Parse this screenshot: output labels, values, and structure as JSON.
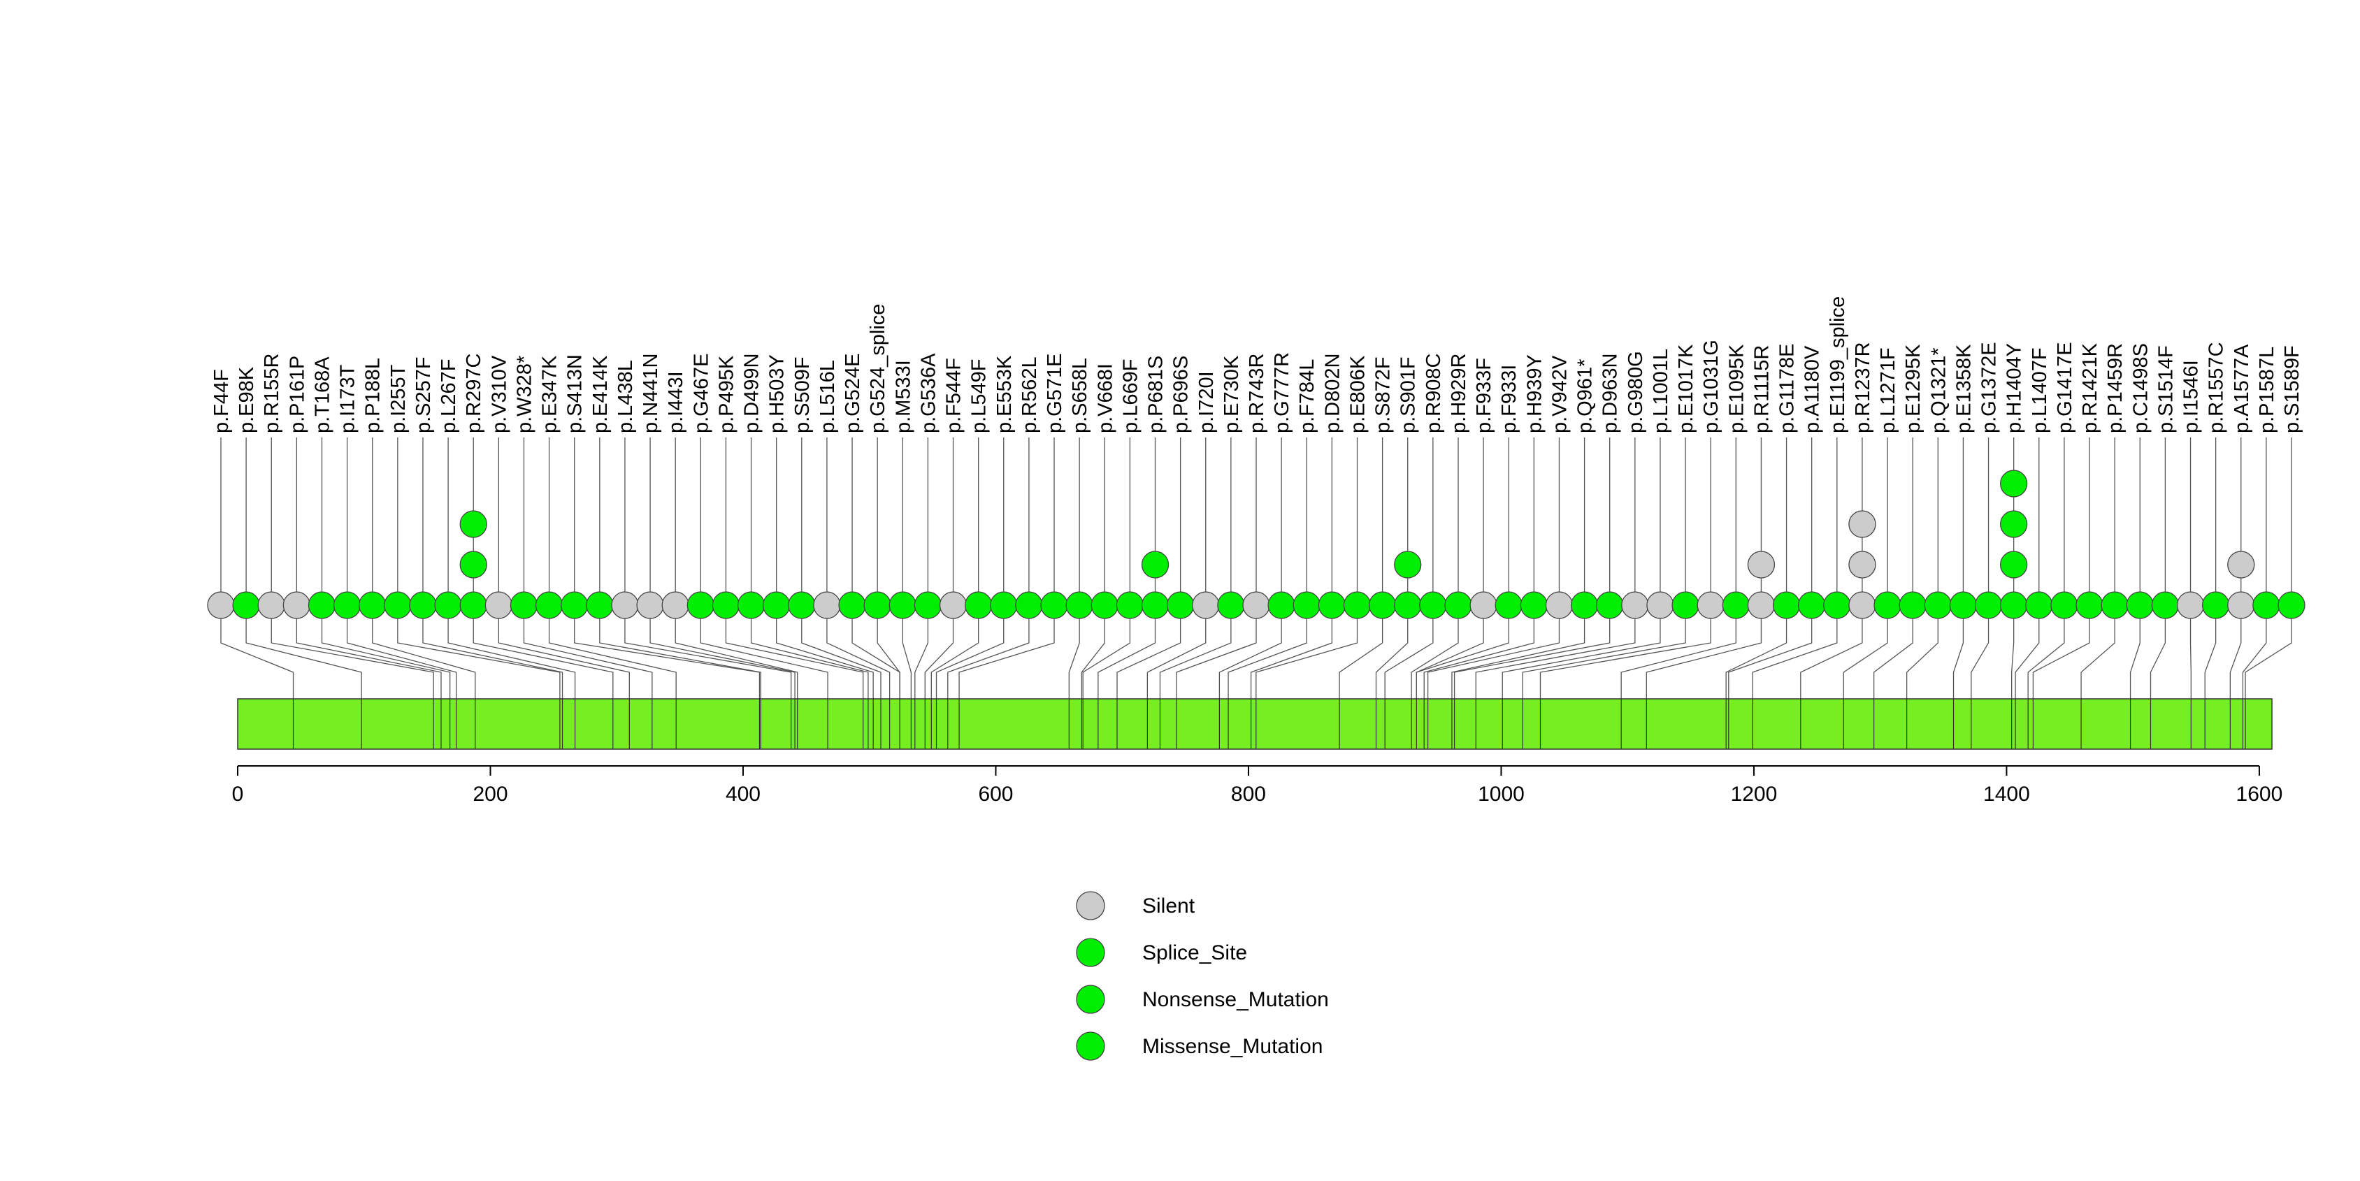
{
  "colors": {
    "silent": "#cccccc",
    "mutation": "#00ee00",
    "protein_bar": "#76ee22",
    "line": "#555555"
  },
  "chart_data": {
    "type": "lollipop",
    "title": "",
    "xlabel": "",
    "ylabel": "",
    "xlim": [
      0,
      1610
    ],
    "x_ticks": [
      0,
      200,
      400,
      600,
      800,
      1000,
      1200,
      1400,
      1600
    ],
    "protein_length": 1610,
    "legend_placement": "bottom-center",
    "legend": [
      {
        "label": "Silent",
        "color_key": "silent"
      },
      {
        "label": "Splice_Site",
        "color_key": "mutation"
      },
      {
        "label": "Nonsense_Mutation",
        "color_key": "mutation"
      },
      {
        "label": "Missense_Mutation",
        "color_key": "mutation"
      }
    ],
    "domain_boundaries": [
      44,
      98,
      155,
      161,
      168,
      173,
      188,
      255,
      257,
      267,
      297,
      310,
      328,
      347,
      413,
      414,
      438,
      441,
      443,
      467,
      495,
      499,
      503,
      509,
      516,
      524,
      533,
      536,
      544,
      549,
      553,
      562,
      571,
      658,
      668,
      669,
      681,
      696,
      720,
      730,
      743,
      777,
      784,
      802,
      806,
      872,
      901,
      908,
      929,
      933,
      939,
      942,
      961,
      963,
      980,
      1001,
      1017,
      1031,
      1095,
      1115,
      1178,
      1180,
      1199,
      1237,
      1271,
      1295,
      1321,
      1358,
      1372,
      1404,
      1407,
      1417,
      1421,
      1459,
      1498,
      1514,
      1546,
      1557,
      1577,
      1587,
      1589
    ],
    "mutations": [
      {
        "label": "p.F44F",
        "position": 44,
        "counts": [
          "silent"
        ]
      },
      {
        "label": "p.E98K",
        "position": 98,
        "counts": [
          "mutation"
        ]
      },
      {
        "label": "p.R155R",
        "position": 155,
        "counts": [
          "silent"
        ]
      },
      {
        "label": "p.P161P",
        "position": 161,
        "counts": [
          "silent"
        ]
      },
      {
        "label": "p.T168A",
        "position": 168,
        "counts": [
          "mutation"
        ]
      },
      {
        "label": "p.I173T",
        "position": 173,
        "counts": [
          "mutation"
        ]
      },
      {
        "label": "p.P188L",
        "position": 188,
        "counts": [
          "mutation"
        ]
      },
      {
        "label": "p.I255T",
        "position": 255,
        "counts": [
          "mutation"
        ]
      },
      {
        "label": "p.S257F",
        "position": 257,
        "counts": [
          "mutation"
        ]
      },
      {
        "label": "p.L267F",
        "position": 267,
        "counts": [
          "mutation"
        ]
      },
      {
        "label": "p.R297C",
        "position": 297,
        "counts": [
          "mutation",
          "mutation",
          "mutation"
        ]
      },
      {
        "label": "p.V310V",
        "position": 310,
        "counts": [
          "silent"
        ]
      },
      {
        "label": "p.W328*",
        "position": 328,
        "counts": [
          "mutation"
        ]
      },
      {
        "label": "p.E347K",
        "position": 347,
        "counts": [
          "mutation"
        ]
      },
      {
        "label": "p.S413N",
        "position": 413,
        "counts": [
          "mutation"
        ]
      },
      {
        "label": "p.E414K",
        "position": 414,
        "counts": [
          "mutation"
        ]
      },
      {
        "label": "p.L438L",
        "position": 438,
        "counts": [
          "silent"
        ]
      },
      {
        "label": "p.N441N",
        "position": 441,
        "counts": [
          "silent"
        ]
      },
      {
        "label": "p.I443I",
        "position": 443,
        "counts": [
          "silent"
        ]
      },
      {
        "label": "p.G467E",
        "position": 467,
        "counts": [
          "mutation"
        ]
      },
      {
        "label": "p.P495K",
        "position": 495,
        "counts": [
          "mutation"
        ]
      },
      {
        "label": "p.D499N",
        "position": 499,
        "counts": [
          "mutation"
        ]
      },
      {
        "label": "p.H503Y",
        "position": 503,
        "counts": [
          "mutation"
        ]
      },
      {
        "label": "p.S509F",
        "position": 509,
        "counts": [
          "mutation"
        ]
      },
      {
        "label": "p.L516L",
        "position": 516,
        "counts": [
          "silent"
        ]
      },
      {
        "label": "p.G524E",
        "position": 524,
        "counts": [
          "mutation"
        ]
      },
      {
        "label": "p.G524_splice",
        "position": 524,
        "counts": [
          "mutation"
        ]
      },
      {
        "label": "p.M533I",
        "position": 533,
        "counts": [
          "mutation"
        ]
      },
      {
        "label": "p.G536A",
        "position": 536,
        "counts": [
          "mutation"
        ]
      },
      {
        "label": "p.F544F",
        "position": 544,
        "counts": [
          "silent"
        ]
      },
      {
        "label": "p.L549F",
        "position": 549,
        "counts": [
          "mutation"
        ]
      },
      {
        "label": "p.E553K",
        "position": 553,
        "counts": [
          "mutation"
        ]
      },
      {
        "label": "p.R562L",
        "position": 562,
        "counts": [
          "mutation"
        ]
      },
      {
        "label": "p.G571E",
        "position": 571,
        "counts": [
          "mutation"
        ]
      },
      {
        "label": "p.S658L",
        "position": 658,
        "counts": [
          "mutation"
        ]
      },
      {
        "label": "p.V668I",
        "position": 668,
        "counts": [
          "mutation"
        ]
      },
      {
        "label": "p.L669F",
        "position": 669,
        "counts": [
          "mutation"
        ]
      },
      {
        "label": "p.P681S",
        "position": 681,
        "counts": [
          "mutation",
          "mutation"
        ]
      },
      {
        "label": "p.P696S",
        "position": 696,
        "counts": [
          "mutation"
        ]
      },
      {
        "label": "p.I720I",
        "position": 720,
        "counts": [
          "silent"
        ]
      },
      {
        "label": "p.E730K",
        "position": 730,
        "counts": [
          "mutation"
        ]
      },
      {
        "label": "p.R743R",
        "position": 743,
        "counts": [
          "silent"
        ]
      },
      {
        "label": "p.G777R",
        "position": 777,
        "counts": [
          "mutation"
        ]
      },
      {
        "label": "p.F784L",
        "position": 784,
        "counts": [
          "mutation"
        ]
      },
      {
        "label": "p.D802N",
        "position": 802,
        "counts": [
          "mutation"
        ]
      },
      {
        "label": "p.E806K",
        "position": 806,
        "counts": [
          "mutation"
        ]
      },
      {
        "label": "p.S872F",
        "position": 872,
        "counts": [
          "mutation"
        ]
      },
      {
        "label": "p.S901F",
        "position": 901,
        "counts": [
          "mutation",
          "mutation"
        ]
      },
      {
        "label": "p.R908C",
        "position": 908,
        "counts": [
          "mutation"
        ]
      },
      {
        "label": "p.H929R",
        "position": 929,
        "counts": [
          "mutation"
        ]
      },
      {
        "label": "p.F933F",
        "position": 933,
        "counts": [
          "silent"
        ]
      },
      {
        "label": "p.F933I",
        "position": 933,
        "counts": [
          "mutation"
        ]
      },
      {
        "label": "p.H939Y",
        "position": 939,
        "counts": [
          "mutation"
        ]
      },
      {
        "label": "p.V942V",
        "position": 942,
        "counts": [
          "silent"
        ]
      },
      {
        "label": "p.Q961*",
        "position": 961,
        "counts": [
          "mutation"
        ]
      },
      {
        "label": "p.D963N",
        "position": 963,
        "counts": [
          "mutation"
        ]
      },
      {
        "label": "p.G980G",
        "position": 980,
        "counts": [
          "silent"
        ]
      },
      {
        "label": "p.L1001L",
        "position": 1001,
        "counts": [
          "silent"
        ]
      },
      {
        "label": "p.E1017K",
        "position": 1017,
        "counts": [
          "mutation"
        ]
      },
      {
        "label": "p.G1031G",
        "position": 1031,
        "counts": [
          "silent"
        ]
      },
      {
        "label": "p.E1095K",
        "position": 1095,
        "counts": [
          "mutation"
        ]
      },
      {
        "label": "p.R1115R",
        "position": 1115,
        "counts": [
          "silent",
          "silent"
        ]
      },
      {
        "label": "p.G1178E",
        "position": 1178,
        "counts": [
          "mutation"
        ]
      },
      {
        "label": "p.A1180V",
        "position": 1180,
        "counts": [
          "mutation"
        ]
      },
      {
        "label": "p.E1199_splice",
        "position": 1199,
        "counts": [
          "mutation"
        ]
      },
      {
        "label": "p.R1237R",
        "position": 1237,
        "counts": [
          "silent",
          "silent",
          "silent"
        ]
      },
      {
        "label": "p.L1271F",
        "position": 1271,
        "counts": [
          "mutation"
        ]
      },
      {
        "label": "p.E1295K",
        "position": 1295,
        "counts": [
          "mutation"
        ]
      },
      {
        "label": "p.Q1321*",
        "position": 1321,
        "counts": [
          "mutation"
        ]
      },
      {
        "label": "p.E1358K",
        "position": 1358,
        "counts": [
          "mutation"
        ]
      },
      {
        "label": "p.G1372E",
        "position": 1372,
        "counts": [
          "mutation"
        ]
      },
      {
        "label": "p.H1404Y",
        "position": 1404,
        "counts": [
          "mutation",
          "mutation",
          "mutation",
          "mutation"
        ]
      },
      {
        "label": "p.L1407F",
        "position": 1407,
        "counts": [
          "mutation"
        ]
      },
      {
        "label": "p.G1417E",
        "position": 1417,
        "counts": [
          "mutation"
        ]
      },
      {
        "label": "p.R1421K",
        "position": 1421,
        "counts": [
          "mutation"
        ]
      },
      {
        "label": "p.P1459R",
        "position": 1459,
        "counts": [
          "mutation"
        ]
      },
      {
        "label": "p.C1498S",
        "position": 1498,
        "counts": [
          "mutation"
        ]
      },
      {
        "label": "p.S1514F",
        "position": 1514,
        "counts": [
          "mutation"
        ]
      },
      {
        "label": "p.I1546I",
        "position": 1546,
        "counts": [
          "silent"
        ]
      },
      {
        "label": "p.R1557C",
        "position": 1557,
        "counts": [
          "mutation"
        ]
      },
      {
        "label": "p.A1577A",
        "position": 1577,
        "counts": [
          "silent",
          "silent"
        ]
      },
      {
        "label": "p.P1587L",
        "position": 1587,
        "counts": [
          "mutation"
        ]
      },
      {
        "label": "p.S1589F",
        "position": 1589,
        "counts": [
          "mutation"
        ]
      }
    ]
  }
}
